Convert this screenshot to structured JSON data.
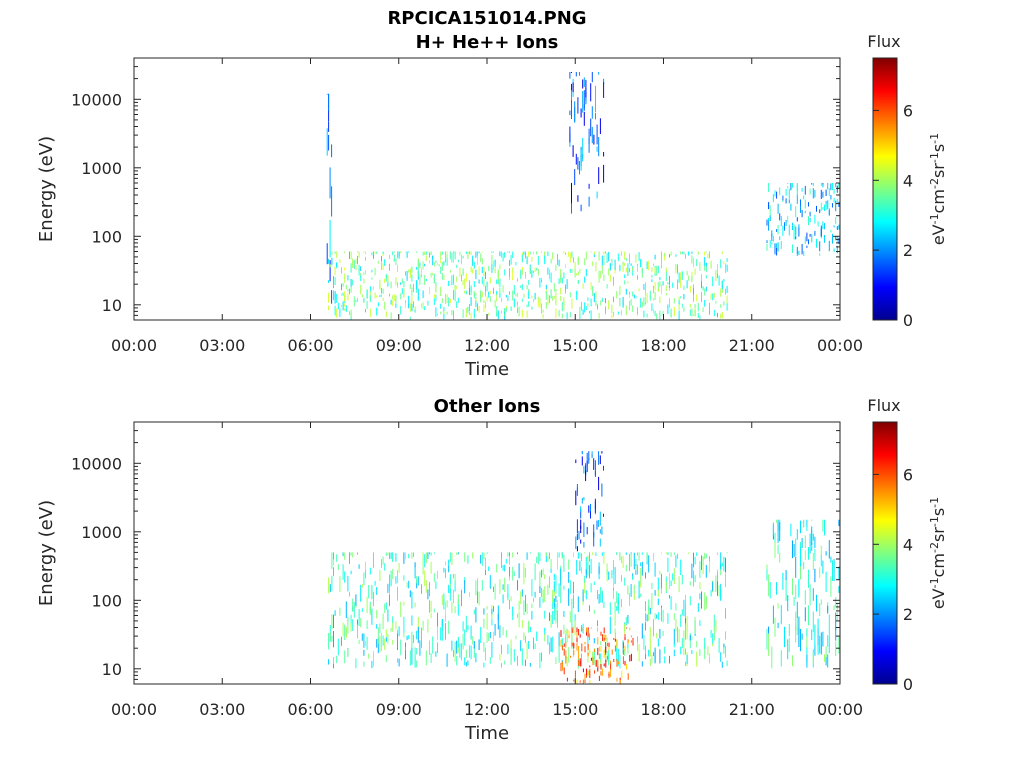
{
  "figure": {
    "title_line1": "RPCICA151014.PNG"
  },
  "colormap": [
    "#00008f",
    "#0000ff",
    "#0080ff",
    "#00ffff",
    "#80ff80",
    "#ffff00",
    "#ff8000",
    "#ff0000",
    "#800000"
  ],
  "colorbar": {
    "title": "Flux",
    "unit_label": "eV-1cm-2sr-1s-1",
    "ticks": [
      "0",
      "2",
      "4",
      "6"
    ],
    "range": [
      0,
      7.5
    ]
  },
  "chart_data": [
    {
      "type": "heatmap",
      "title": "H+ He++ Ions",
      "xlabel": "Time",
      "ylabel": "Energy (eV)",
      "x_ticks": [
        "00:00",
        "03:00",
        "06:00",
        "09:00",
        "12:00",
        "15:00",
        "18:00",
        "21:00",
        "00:00"
      ],
      "y_ticks": [
        "10",
        "100",
        "1000",
        "10000"
      ],
      "y_scale": "log",
      "ylim": [
        6,
        40000
      ],
      "xlim_hours": [
        0,
        24
      ],
      "data_gaps_hours": [
        [
          0,
          6.6
        ],
        [
          20.2,
          21.5
        ]
      ],
      "features": [
        {
          "label": "burst",
          "t_hours": [
            6.55,
            6.75
          ],
          "energy_eV": [
            10,
            12000
          ],
          "flux": 2.0
        },
        {
          "label": "burst",
          "t_hours": [
            14.8,
            16.0
          ],
          "energy_eV": [
            200,
            25000
          ],
          "flux": 1.6
        },
        {
          "label": "band",
          "t_hours": [
            21.5,
            24.0
          ],
          "energy_eV": [
            50,
            600
          ],
          "flux": 2.5
        },
        {
          "label": "background",
          "t_hours": [
            6.6,
            20.2
          ],
          "energy_eV": [
            6,
            60
          ],
          "flux": 3.5
        }
      ]
    },
    {
      "type": "heatmap",
      "title": "Other Ions",
      "xlabel": "Time",
      "ylabel": "Energy (eV)",
      "x_ticks": [
        "00:00",
        "03:00",
        "06:00",
        "09:00",
        "12:00",
        "15:00",
        "18:00",
        "21:00",
        "00:00"
      ],
      "y_ticks": [
        "10",
        "100",
        "1000",
        "10000"
      ],
      "y_scale": "log",
      "ylim": [
        6,
        40000
      ],
      "xlim_hours": [
        0,
        24
      ],
      "data_gaps_hours": [
        [
          0,
          6.6
        ],
        [
          20.2,
          21.5
        ]
      ],
      "features": [
        {
          "label": "band",
          "t_hours": [
            6.6,
            20.2
          ],
          "energy_eV": [
            10,
            500
          ],
          "flux": 3.2
        },
        {
          "label": "burst",
          "t_hours": [
            15.0,
            16.0
          ],
          "energy_eV": [
            500,
            15000
          ],
          "flux": 1.5
        },
        {
          "label": "band",
          "t_hours": [
            21.5,
            24.0
          ],
          "energy_eV": [
            10,
            1500
          ],
          "flux": 3.0
        },
        {
          "label": "peak",
          "t_hours": [
            14.5,
            17.0
          ],
          "energy_eV": [
            6,
            40
          ],
          "flux": 5.8
        }
      ]
    }
  ]
}
